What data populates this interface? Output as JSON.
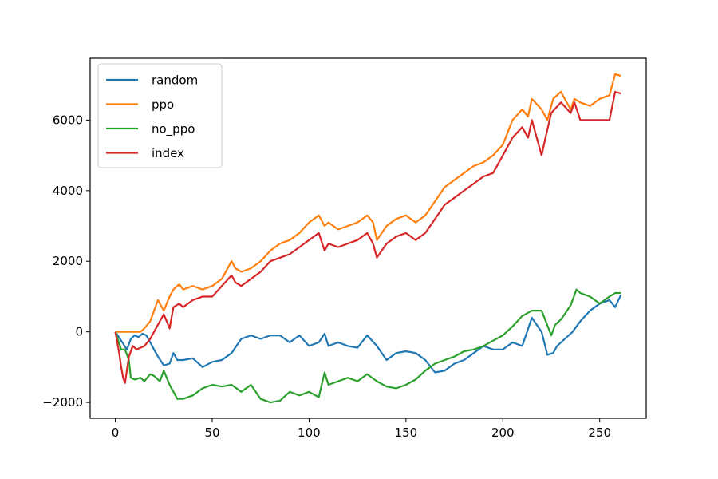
{
  "chart_data": {
    "type": "line",
    "title": "",
    "xlabel": "",
    "ylabel": "",
    "xlim": [
      -13,
      274
    ],
    "ylim": [
      -2450,
      7750
    ],
    "xticks": [
      0,
      50,
      100,
      150,
      200,
      250
    ],
    "yticks": [
      -2000,
      0,
      2000,
      4000,
      6000
    ],
    "xtick_labels": [
      "0",
      "50",
      "100",
      "150",
      "200",
      "250"
    ],
    "ytick_labels": [
      "−2000",
      "0",
      "2000",
      "4000",
      "6000"
    ],
    "legend_position": "upper-left",
    "grid": false,
    "series": [
      {
        "name": "random",
        "color": "#1f77b4",
        "x": [
          0,
          3,
          6,
          8,
          10,
          12,
          14,
          16,
          18,
          20,
          22,
          25,
          28,
          30,
          32,
          35,
          40,
          45,
          50,
          55,
          60,
          65,
          70,
          75,
          80,
          85,
          90,
          95,
          100,
          105,
          108,
          110,
          115,
          120,
          125,
          130,
          135,
          140,
          145,
          150,
          155,
          160,
          165,
          170,
          175,
          180,
          185,
          190,
          195,
          200,
          205,
          210,
          215,
          220,
          223,
          226,
          228,
          232,
          236,
          240,
          245,
          250,
          255,
          258,
          261
        ],
        "y": [
          0,
          -250,
          -500,
          -200,
          -100,
          -150,
          -50,
          -100,
          -300,
          -500,
          -700,
          -950,
          -900,
          -600,
          -800,
          -800,
          -750,
          -1000,
          -850,
          -800,
          -600,
          -200,
          -100,
          -200,
          -100,
          -100,
          -300,
          -100,
          -400,
          -300,
          -50,
          -400,
          -300,
          -400,
          -450,
          -100,
          -400,
          -800,
          -600,
          -550,
          -600,
          -800,
          -1150,
          -1100,
          -900,
          -800,
          -600,
          -400,
          -500,
          -500,
          -300,
          -400,
          400,
          0,
          -650,
          -600,
          -400,
          -200,
          0,
          300,
          600,
          800,
          900,
          700,
          1050
        ]
      },
      {
        "name": "ppo",
        "color": "#ff7f0e",
        "x": [
          0,
          5,
          8,
          10,
          13,
          15,
          18,
          20,
          22,
          25,
          28,
          30,
          33,
          35,
          40,
          45,
          50,
          55,
          60,
          62,
          65,
          70,
          75,
          80,
          85,
          90,
          95,
          100,
          105,
          108,
          110,
          115,
          120,
          125,
          130,
          133,
          135,
          140,
          145,
          150,
          155,
          160,
          165,
          170,
          175,
          180,
          185,
          190,
          195,
          200,
          205,
          210,
          213,
          215,
          220,
          223,
          226,
          230,
          235,
          237,
          240,
          245,
          250,
          255,
          258,
          261
        ],
        "y": [
          0,
          0,
          0,
          0,
          0,
          100,
          300,
          600,
          900,
          600,
          1000,
          1200,
          1350,
          1200,
          1300,
          1200,
          1300,
          1500,
          2000,
          1800,
          1700,
          1800,
          2000,
          2300,
          2500,
          2600,
          2800,
          3100,
          3300,
          3000,
          3100,
          2900,
          3000,
          3100,
          3300,
          3100,
          2600,
          3000,
          3200,
          3300,
          3100,
          3300,
          3700,
          4100,
          4300,
          4500,
          4700,
          4800,
          5000,
          5300,
          6000,
          6300,
          6100,
          6600,
          6300,
          6000,
          6600,
          6800,
          6300,
          6600,
          6500,
          6400,
          6600,
          6700,
          7300,
          7250
        ]
      },
      {
        "name": "no_ppo",
        "color": "#2ca02c",
        "x": [
          0,
          3,
          5,
          7,
          8,
          10,
          13,
          15,
          18,
          20,
          23,
          25,
          28,
          30,
          32,
          35,
          40,
          45,
          50,
          55,
          60,
          65,
          70,
          75,
          80,
          85,
          90,
          95,
          100,
          105,
          108,
          110,
          115,
          120,
          125,
          130,
          135,
          140,
          145,
          150,
          155,
          160,
          165,
          170,
          175,
          180,
          185,
          190,
          195,
          200,
          205,
          210,
          215,
          220,
          225,
          227,
          230,
          235,
          238,
          240,
          245,
          250,
          255,
          258,
          261
        ],
        "y": [
          0,
          -500,
          -500,
          -800,
          -1300,
          -1350,
          -1300,
          -1400,
          -1200,
          -1250,
          -1400,
          -1100,
          -1500,
          -1700,
          -1900,
          -1900,
          -1800,
          -1600,
          -1500,
          -1550,
          -1500,
          -1700,
          -1500,
          -1900,
          -2000,
          -1950,
          -1700,
          -1800,
          -1700,
          -1850,
          -1150,
          -1500,
          -1400,
          -1300,
          -1400,
          -1200,
          -1400,
          -1550,
          -1600,
          -1500,
          -1350,
          -1100,
          -900,
          -800,
          -700,
          -550,
          -500,
          -400,
          -250,
          -100,
          150,
          450,
          600,
          600,
          -100,
          200,
          350,
          750,
          1200,
          1100,
          1000,
          800,
          1000,
          1100,
          1100
        ]
      },
      {
        "name": "index",
        "color": "#d62728",
        "x": [
          0,
          2,
          3,
          4,
          5,
          7,
          9,
          11,
          13,
          15,
          18,
          20,
          23,
          25,
          28,
          30,
          33,
          35,
          40,
          45,
          50,
          55,
          60,
          62,
          65,
          70,
          75,
          80,
          85,
          90,
          95,
          100,
          105,
          108,
          110,
          115,
          120,
          125,
          130,
          133,
          135,
          140,
          145,
          150,
          155,
          160,
          165,
          170,
          175,
          180,
          185,
          190,
          195,
          200,
          205,
          210,
          213,
          215,
          220,
          222,
          225,
          230,
          235,
          237,
          240,
          245,
          250,
          255,
          258,
          261
        ],
        "y": [
          0,
          -600,
          -1000,
          -1300,
          -1450,
          -700,
          -400,
          -500,
          -450,
          -400,
          -200,
          0,
          300,
          500,
          100,
          700,
          800,
          700,
          900,
          1000,
          1000,
          1300,
          1600,
          1400,
          1300,
          1500,
          1700,
          2000,
          2100,
          2200,
          2400,
          2600,
          2800,
          2300,
          2500,
          2400,
          2500,
          2600,
          2800,
          2500,
          2100,
          2500,
          2700,
          2800,
          2600,
          2800,
          3200,
          3600,
          3800,
          4000,
          4200,
          4400,
          4500,
          5000,
          5500,
          5800,
          5500,
          6000,
          5000,
          5500,
          6200,
          6500,
          6200,
          6500,
          6000,
          6000,
          6000,
          6000,
          6800,
          6750
        ]
      }
    ]
  }
}
